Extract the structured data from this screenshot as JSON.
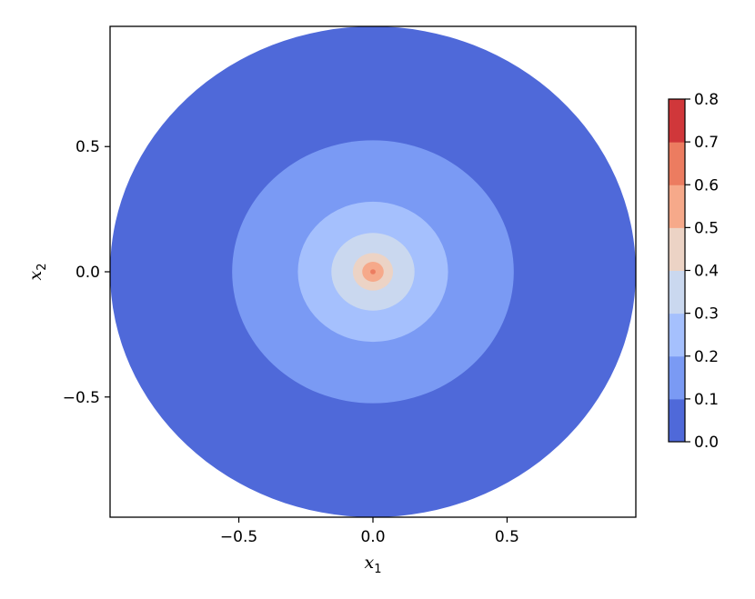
{
  "chart_data": {
    "type": "contourf",
    "title": "",
    "xlabel": "x",
    "xlabel_sub": "1",
    "ylabel": "x",
    "ylabel_sub": "2",
    "xlim": [
      -0.98,
      0.98
    ],
    "ylim": [
      -0.98,
      0.98
    ],
    "xticks": [
      -0.5,
      0.0,
      0.5
    ],
    "xtick_labels": [
      "−0.5",
      "0.0",
      "0.5"
    ],
    "yticks": [
      -0.5,
      0.0,
      0.5
    ],
    "ytick_labels": [
      "−0.5",
      "0.0",
      "0.5"
    ],
    "grid": false,
    "colormap": "coolwarm",
    "levels": [
      0.0,
      0.1,
      0.2,
      0.3,
      0.4,
      0.5,
      0.6,
      0.7,
      0.8
    ],
    "level_labels": [
      "0.0",
      "0.1",
      "0.2",
      "0.3",
      "0.4",
      "0.5",
      "0.6",
      "0.7",
      "0.8"
    ],
    "band_colors": [
      "#4f69d9",
      "#7a9af4",
      "#a5c0fd",
      "#cad8ef",
      "#ecd3c5",
      "#f6a98a",
      "#ec7c60",
      "#d0373a"
    ],
    "filled_regions": [
      {
        "level_band": [
          0.0,
          0.1
        ],
        "radius": 0.98
      },
      {
        "level_band": [
          0.1,
          0.2
        ],
        "radius": 0.525
      },
      {
        "level_band": [
          0.2,
          0.3
        ],
        "radius": 0.28
      },
      {
        "level_band": [
          0.3,
          0.4
        ],
        "radius": 0.155
      },
      {
        "level_band": [
          0.4,
          0.5
        ],
        "radius": 0.075
      },
      {
        "level_band": [
          0.5,
          0.6
        ],
        "radius": 0.04
      },
      {
        "level_band": [
          0.6,
          0.7
        ],
        "radius": 0.01
      }
    ],
    "colorbar": {
      "position": "right"
    }
  }
}
